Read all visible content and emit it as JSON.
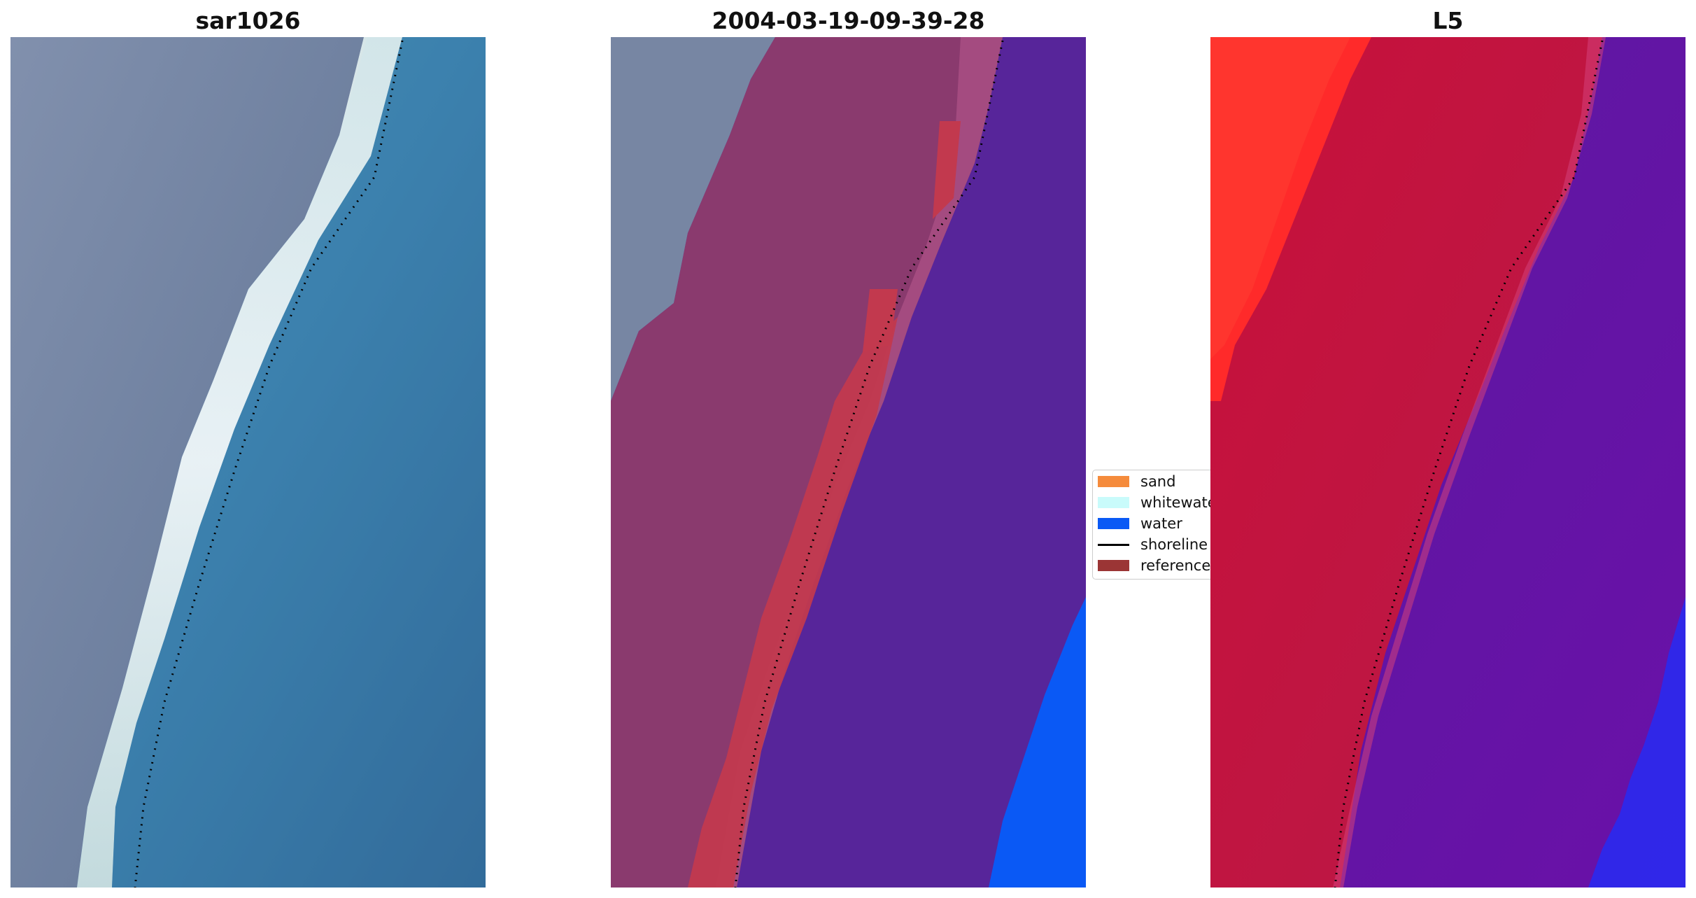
{
  "panels": [
    {
      "title": "sar1026",
      "image": "satellite-rgb"
    },
    {
      "title": "2004-03-19-09-39-28",
      "image": "classification-overlay"
    },
    {
      "title": "L5",
      "image": "index-map"
    }
  ],
  "legend": {
    "items": [
      {
        "label": "sand",
        "color": "#f58b3c",
        "kind": "patch"
      },
      {
        "label": "whitewater",
        "color": "#c9fbfb",
        "kind": "patch"
      },
      {
        "label": "water",
        "color": "#0a59f5",
        "kind": "patch"
      },
      {
        "label": "shoreline",
        "color": "#000000",
        "kind": "line"
      },
      {
        "label": "reference",
        "color": "#9b3535",
        "kind": "patch"
      }
    ]
  },
  "colors": {
    "land_gray": "#7786a3",
    "whitewater": "#eaf3f3",
    "sea": "#3c7fad",
    "sea_dark": "#2d5a8f",
    "land_overlay": "#8a3a6e",
    "reference_red": "#c2394e",
    "water_purple": "#57259a",
    "water_blue": "#0a59f5",
    "index_red": "#c00f37",
    "index_bright_red": "#ff2a2a",
    "index_purple": "#6312a3",
    "index_blue": "#2a2af0",
    "shoreline": "#000000"
  }
}
